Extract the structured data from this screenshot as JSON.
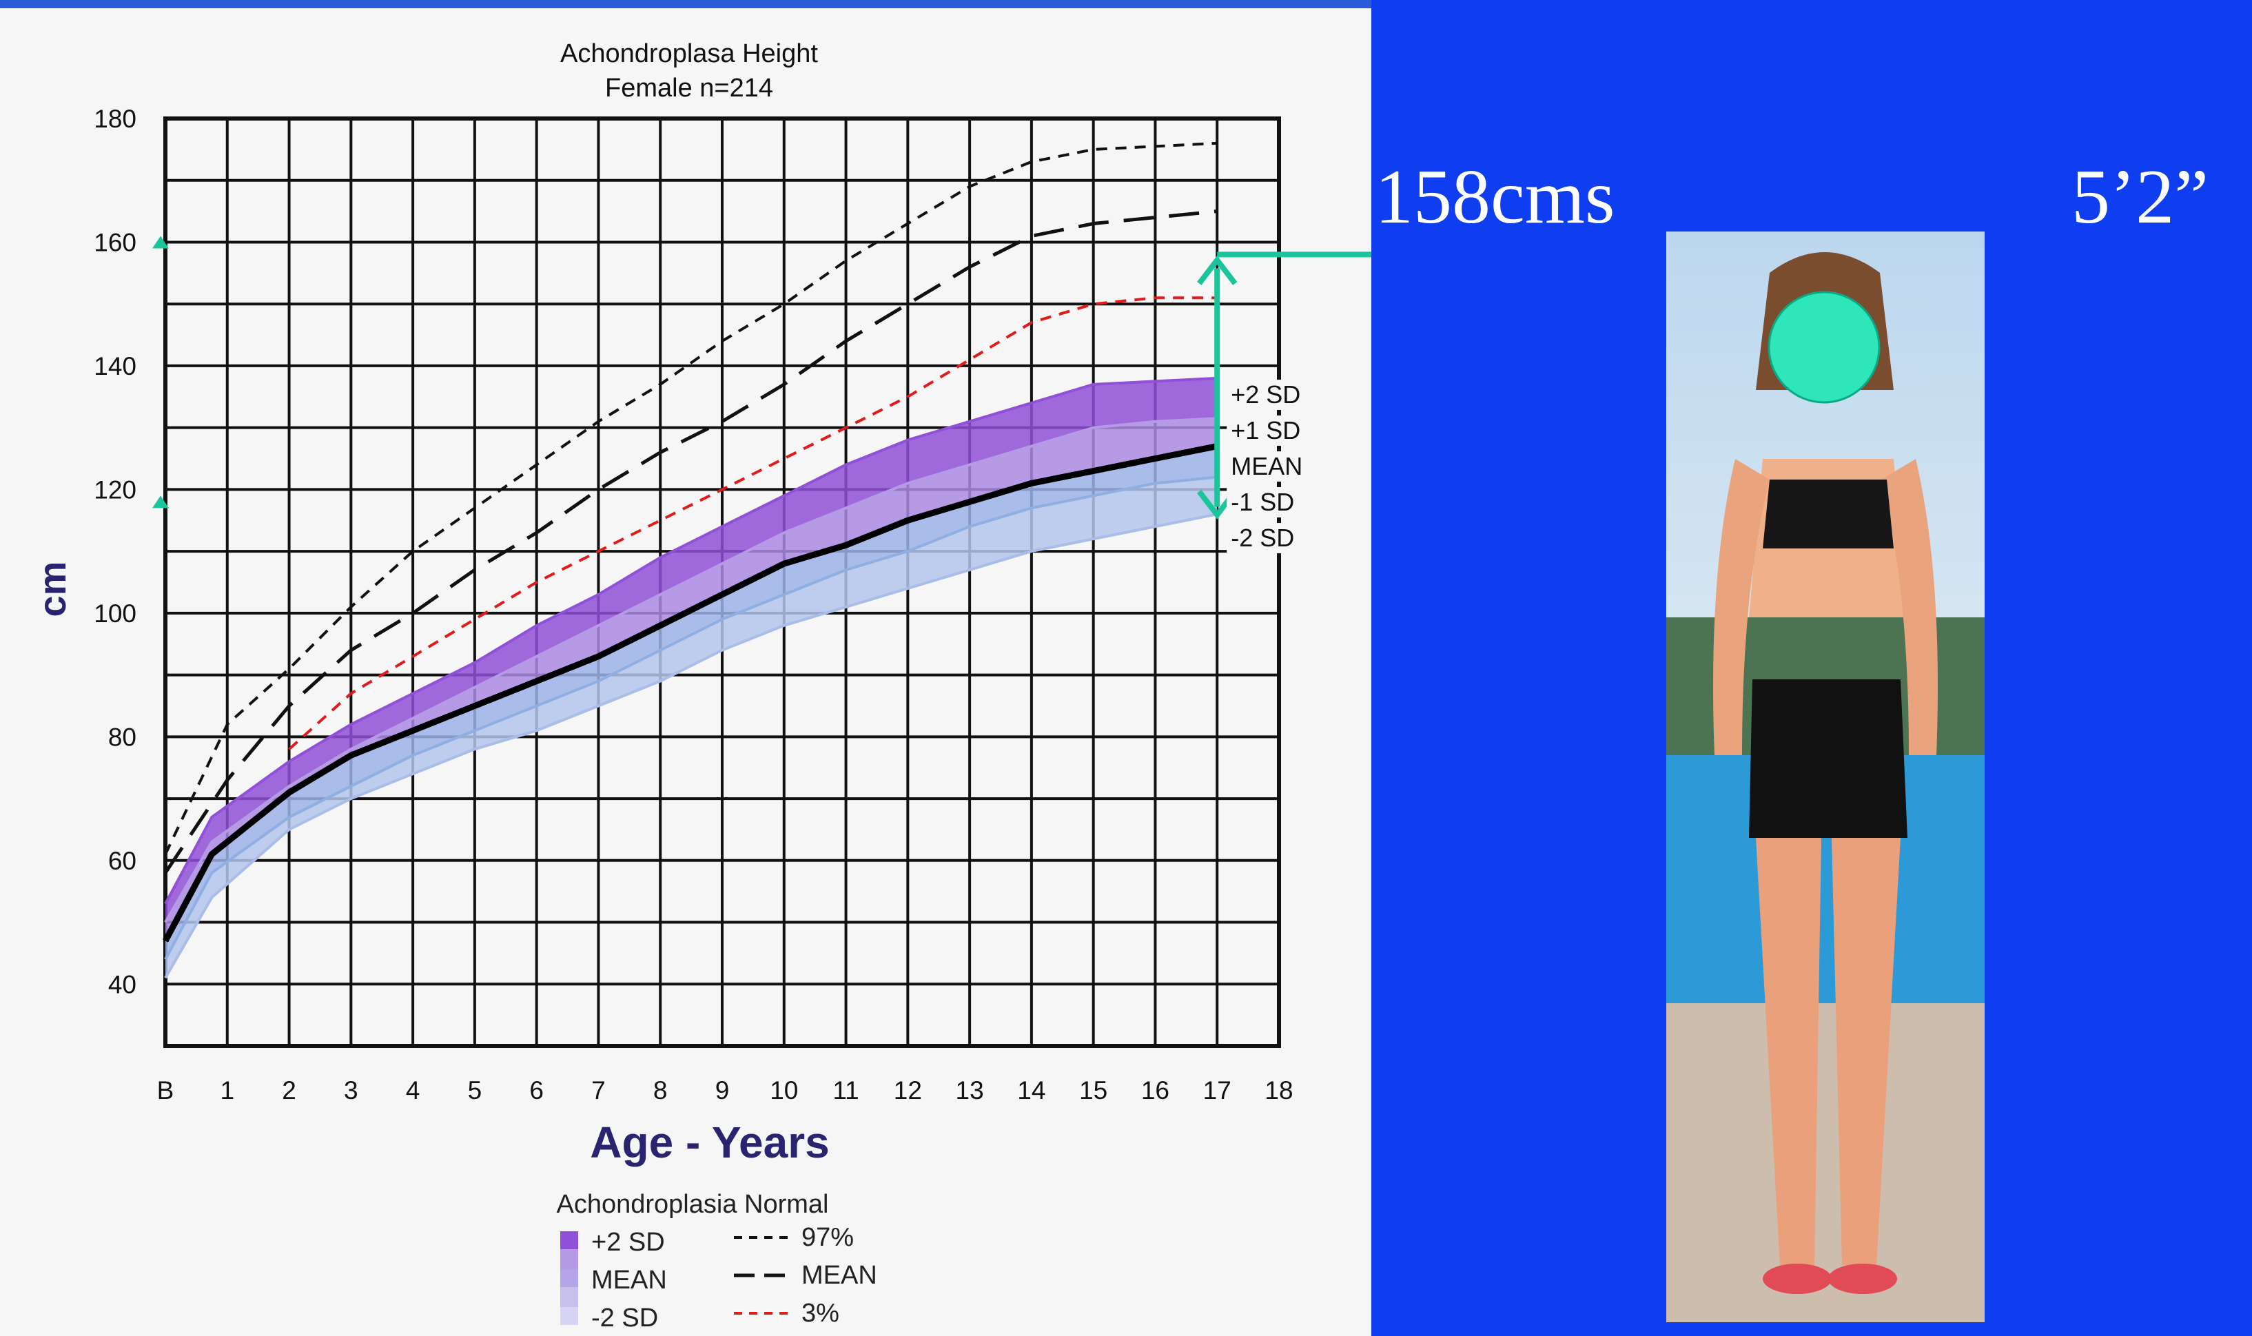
{
  "chart_data": {
    "type": "line",
    "title": "Achondroplasa Height",
    "subtitle": "Female n=214",
    "ylabel": "cm",
    "xlabel": "Age - Years",
    "ylim": [
      30,
      180
    ],
    "xlim": [
      0,
      18
    ],
    "x_ticks": [
      "B",
      "1",
      "2",
      "3",
      "4",
      "5",
      "6",
      "7",
      "8",
      "9",
      "10",
      "11",
      "12",
      "13",
      "14",
      "15",
      "16",
      "17",
      "18"
    ],
    "y_ticks": [
      "40",
      "60",
      "80",
      "100",
      "120",
      "140",
      "160",
      "180"
    ],
    "grid": true,
    "ages": [
      0,
      0.75,
      2,
      3,
      4,
      5,
      6,
      7,
      8,
      9,
      10,
      11,
      12,
      13,
      14,
      15,
      16,
      17
    ],
    "achondroplasia_bands": [
      {
        "name": "+2 SD",
        "color": "#9150d8",
        "values": [
          53,
          67,
          76,
          82,
          87,
          92,
          98,
          103,
          109,
          114,
          119,
          124,
          128,
          131,
          134,
          137,
          137.5,
          138
        ]
      },
      {
        "name": "+1 SD",
        "color": "#b59ae6",
        "values": [
          50,
          63,
          72,
          78,
          83,
          88,
          93,
          98,
          103,
          108,
          113,
          117,
          121,
          124,
          127,
          130,
          131,
          131.5
        ]
      },
      {
        "name": "MEAN",
        "color": "#0a0a0a",
        "values": [
          47,
          61,
          71,
          77,
          81,
          85,
          89,
          93,
          98,
          103,
          108,
          111,
          115,
          118,
          121,
          123,
          125,
          127
        ]
      },
      {
        "name": "-1 SD",
        "color": "#8faee2",
        "values": [
          44,
          58,
          67,
          72,
          77,
          81,
          85,
          89,
          94,
          99,
          103,
          107,
          110,
          114,
          117,
          119,
          121,
          122
        ]
      },
      {
        "name": "-2 SD",
        "color": "#a9bde8",
        "values": [
          41,
          54,
          65,
          70,
          74,
          78,
          81,
          85,
          89,
          94,
          98,
          101,
          104,
          107,
          110,
          112,
          114,
          116
        ]
      }
    ],
    "normal_series": [
      {
        "name": "97%",
        "color": "#111111",
        "dash": "short",
        "x": [
          0,
          1,
          2,
          3,
          4,
          5,
          6,
          7,
          8,
          9,
          10,
          11,
          12,
          13,
          14,
          15,
          16,
          17
        ],
        "values": [
          61,
          82,
          91,
          101,
          110,
          117,
          124,
          131,
          137,
          144,
          150,
          157,
          163,
          169,
          173,
          175,
          175.5,
          176
        ]
      },
      {
        "name": "MEAN",
        "color": "#111111",
        "dash": "long",
        "x": [
          0,
          1,
          2,
          3,
          4,
          5,
          6,
          7,
          8,
          9,
          10,
          11,
          12,
          13,
          14,
          15,
          16,
          17
        ],
        "values": [
          58,
          73,
          85,
          94,
          100,
          107,
          113,
          120,
          126,
          131,
          137,
          144,
          150,
          156,
          161,
          163,
          164,
          165
        ]
      },
      {
        "name": "3%",
        "color": "#e01b1b",
        "dash": "short",
        "x": [
          2,
          3,
          4,
          5,
          6,
          7,
          8,
          9,
          10,
          11,
          12,
          13,
          14,
          15,
          16,
          17
        ],
        "values": [
          78,
          87,
          93,
          99,
          105,
          110,
          115,
          120,
          125,
          130,
          135,
          141,
          147,
          150,
          151,
          151
        ]
      }
    ],
    "annotations": {
      "height_marker_age": 17,
      "height_marker_value": 158,
      "range_low": 115,
      "sd_labels": [
        "+2 SD",
        "+1 SD",
        "MEAN",
        "-1 SD",
        "-2 SD"
      ],
      "marker_color": "#1bc59c"
    },
    "legend": {
      "placement": "bottom",
      "title": "Achondroplasia Normal",
      "achondroplasia_items": [
        "+2 SD",
        "MEAN",
        "-2 SD"
      ],
      "normal_items": [
        "97%",
        "MEAN",
        "3%"
      ]
    }
  },
  "height_label_cm": "158cms",
  "height_label_ft": "5’2”",
  "photo": {
    "face_cover_color": "#2ee6b8",
    "background_color": "#0f3ef0"
  }
}
